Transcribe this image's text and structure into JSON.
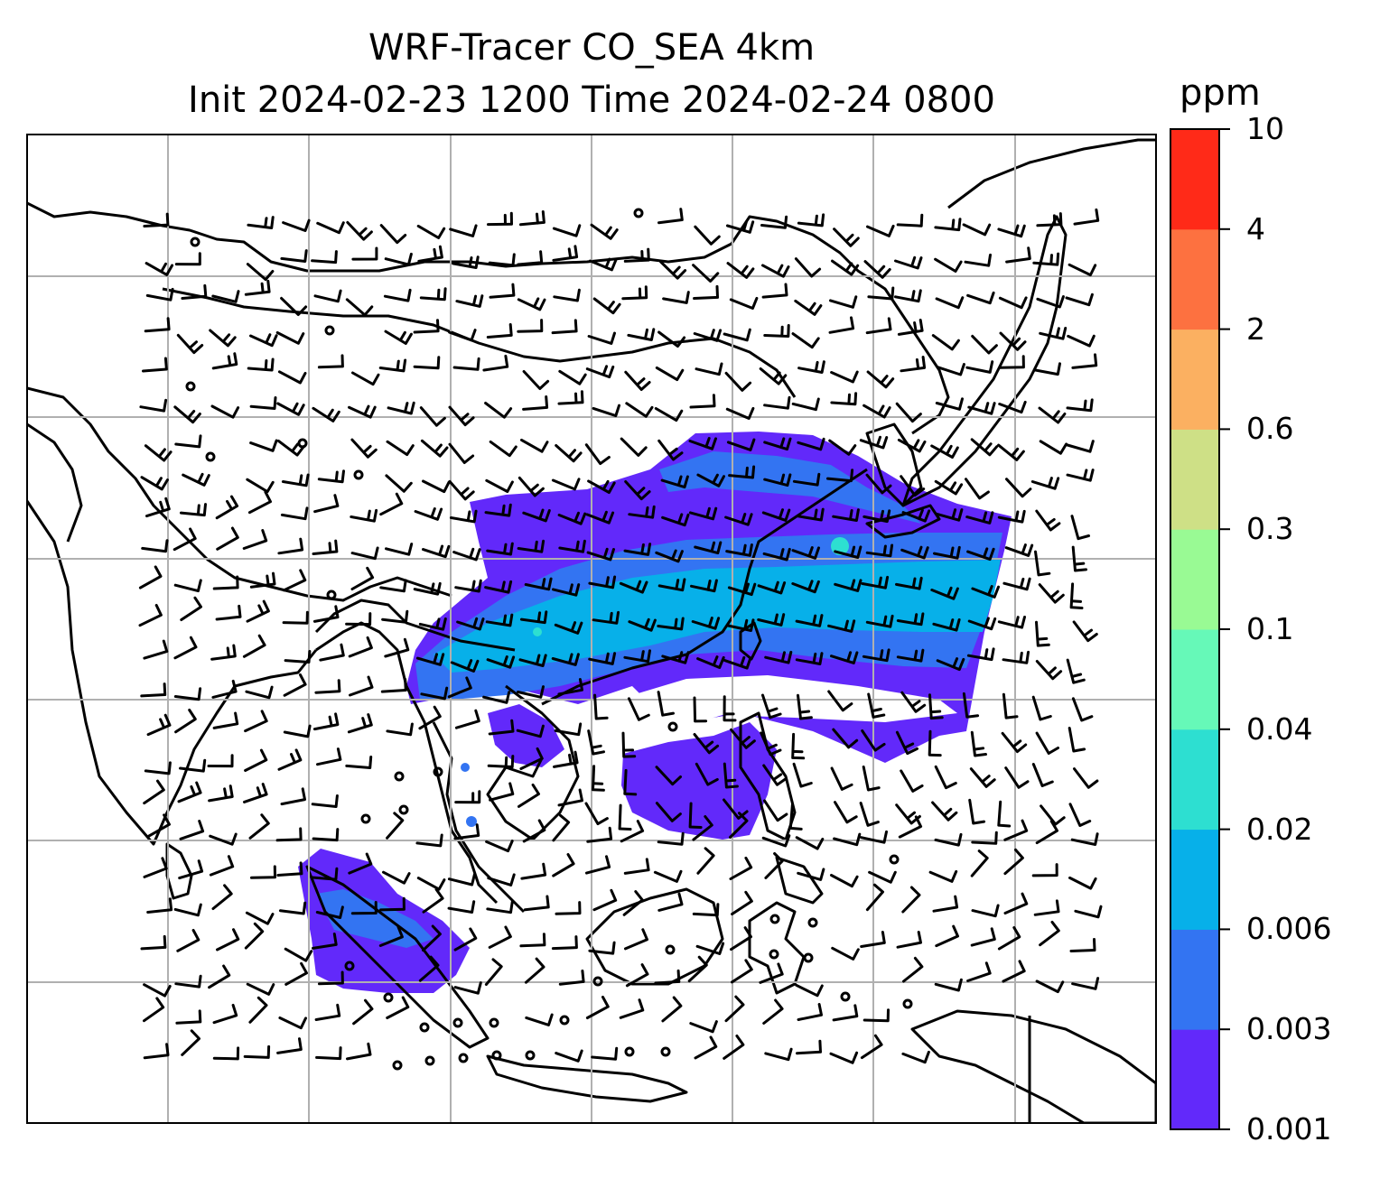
{
  "title": {
    "line1": "WRF-Tracer CO_SEA 4km",
    "line2": "Init 2024-02-23 1200 Time 2024-02-24 0800"
  },
  "colorbar": {
    "unit": "ppm",
    "levels": [
      "0.001",
      "0.003",
      "0.006",
      "0.02",
      "0.04",
      "0.1",
      "0.3",
      "0.6",
      "2",
      "4",
      "10"
    ],
    "colors": [
      "#6229fa",
      "#3374f2",
      "#07b0e9",
      "#2ddfd1",
      "#66f9b8",
      "#99fa94",
      "#cee086",
      "#fbb061",
      "#fd7140",
      "#ff2a18"
    ]
  },
  "map": {
    "grid": "on",
    "tracer_fill": "CO_SEA concentration (ppm)",
    "wind_barbs": "on",
    "colors": {
      "coastline": "#000000",
      "grid": "#b0b0b0"
    }
  }
}
